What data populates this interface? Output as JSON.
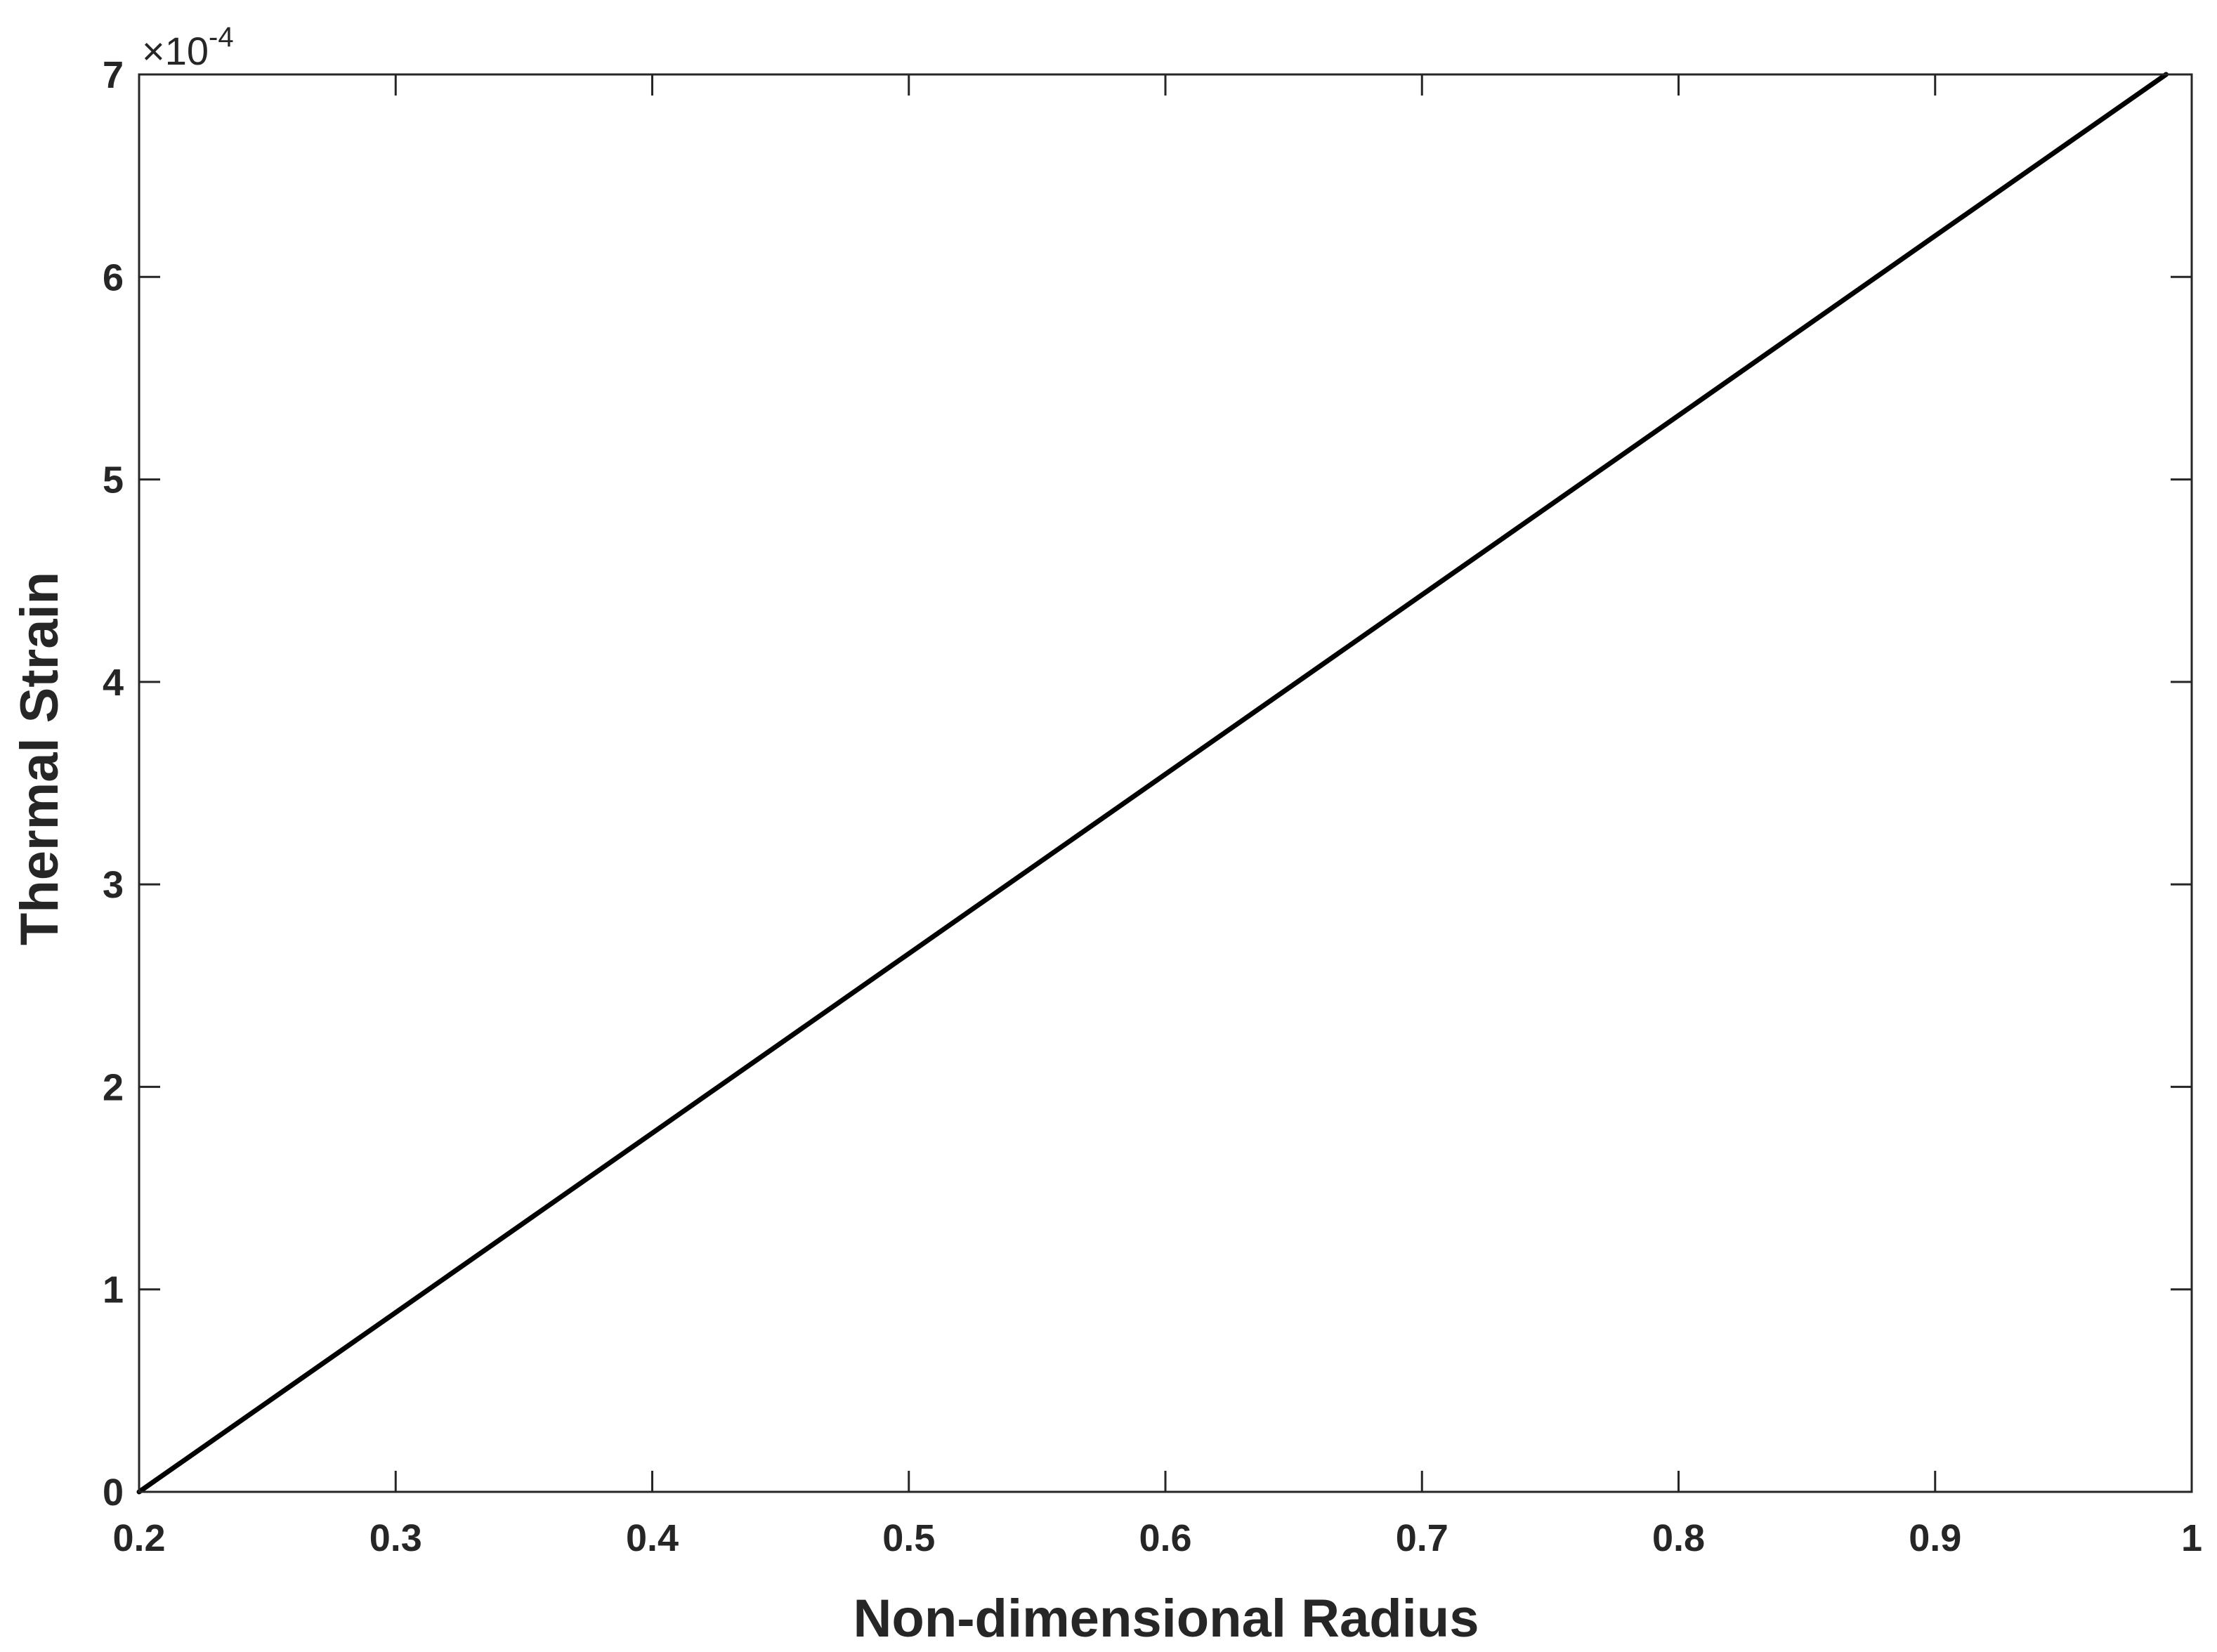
{
  "chart_data": {
    "type": "line",
    "title": "",
    "xlabel": "Non-dimensional Radius",
    "ylabel": "Thermal Strain",
    "y_exponent_prefix": "×10",
    "y_exponent_power": "-4",
    "xlim": [
      0.2,
      1.0
    ],
    "ylim": [
      0,
      7
    ],
    "xticks": [
      0.2,
      0.3,
      0.4,
      0.5,
      0.6,
      0.7,
      0.8,
      0.9,
      1.0
    ],
    "xtick_labels": [
      "0.2",
      "0.3",
      "0.4",
      "0.5",
      "0.6",
      "0.7",
      "0.8",
      "0.9",
      "1"
    ],
    "yticks": [
      0,
      1,
      2,
      3,
      4,
      5,
      6,
      7
    ],
    "ytick_labels": [
      "0",
      "1",
      "2",
      "3",
      "4",
      "5",
      "6",
      "7"
    ],
    "grid": false,
    "legend": "none",
    "series": [
      {
        "color": "#000000",
        "x": [
          0.2,
          0.3,
          0.4,
          0.5,
          0.6,
          0.7,
          0.8,
          0.9,
          0.99
        ],
        "y": [
          0.0,
          0.886,
          1.772,
          2.658,
          3.544,
          4.43,
          5.316,
          6.203,
          7.0
        ]
      }
    ]
  }
}
